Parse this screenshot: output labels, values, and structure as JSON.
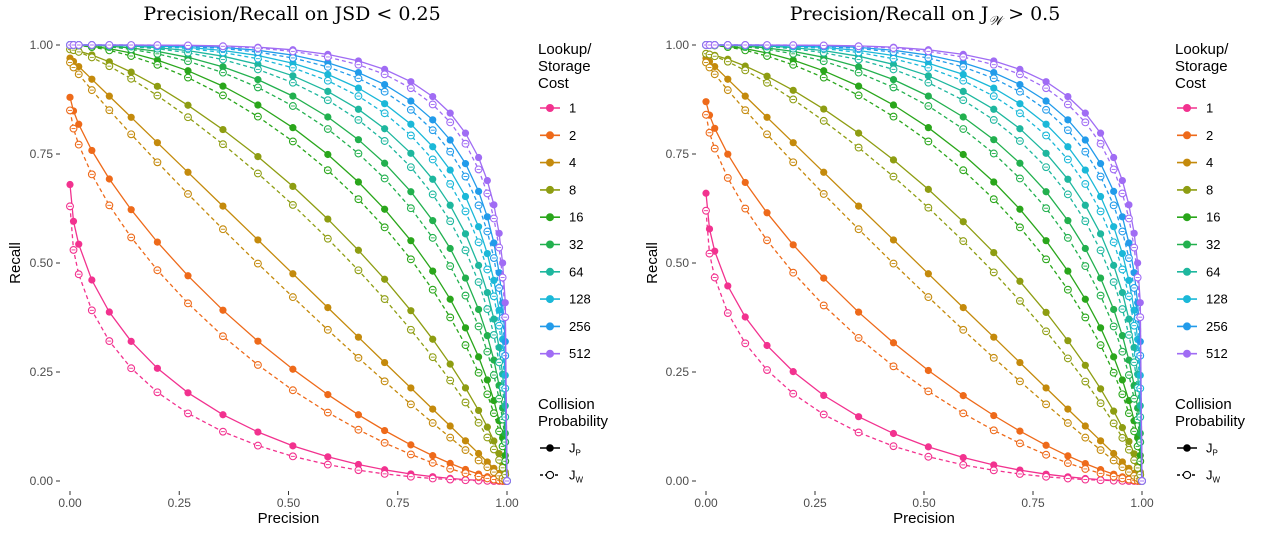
{
  "chart_data": [
    {
      "type": "line",
      "title_prefix": "Precision/Recall on JSD",
      "title_relation": "<",
      "title_threshold": "0.25",
      "xlabel": "Precision",
      "ylabel": "Recall",
      "xlim": [
        0,
        1
      ],
      "ylim": [
        0,
        1
      ],
      "xticks": [
        "0.00",
        "0.25",
        "0.50",
        "0.75",
        "1.00"
      ],
      "yticks": [
        "0.00",
        "0.25",
        "0.50",
        "0.75",
        "1.00"
      ],
      "grid": false,
      "legend_position": "right",
      "legend_cost_title": [
        "Lookup/",
        "Storage",
        "Cost"
      ],
      "legend_prob_title": [
        "Collision",
        "Probability"
      ],
      "costs": [
        {
          "label": "1",
          "color": "#F2328F",
          "start_p": 0.68,
          "start_w": 0.63,
          "knee": 0.55
        },
        {
          "label": "2",
          "color": "#EE6A1A",
          "start_p": 0.88,
          "start_w": 0.85,
          "knee": 0.75
        },
        {
          "label": "4",
          "color": "#C48A0C",
          "start_p": 0.97,
          "start_w": 0.96,
          "knee": 1.0
        },
        {
          "label": "8",
          "color": "#8E9D12",
          "start_p": 0.99,
          "start_w": 0.99,
          "knee": 1.35
        },
        {
          "label": "16",
          "color": "#2AA61B",
          "start_p": 1.0,
          "start_w": 1.0,
          "knee": 1.75
        },
        {
          "label": "32",
          "color": "#22B04E",
          "start_p": 1.0,
          "start_w": 1.0,
          "knee": 2.15
        },
        {
          "label": "64",
          "color": "#1EB79E",
          "start_p": 1.0,
          "start_w": 1.0,
          "knee": 2.6
        },
        {
          "label": "128",
          "color": "#1BB8D8",
          "start_p": 1.0,
          "start_w": 1.0,
          "knee": 3.1
        },
        {
          "label": "256",
          "color": "#229BEA",
          "start_p": 1.0,
          "start_w": 1.0,
          "knee": 3.7
        },
        {
          "label": "512",
          "color": "#A06CF4",
          "start_p": 1.0,
          "start_w": 1.0,
          "knee": 4.5
        }
      ],
      "prob": [
        {
          "label": "J",
          "sub": "P",
          "style": "solid"
        },
        {
          "label": "J",
          "sub": "W",
          "style": "dashed"
        }
      ]
    },
    {
      "type": "line",
      "title_prefix": "Precision/Recall on J",
      "title_sub": "𝒲",
      "title_relation": ">",
      "title_threshold": "0.5",
      "xlabel": "Precision",
      "ylabel": "Recall",
      "xlim": [
        0,
        1
      ],
      "ylim": [
        0,
        1
      ],
      "xticks": [
        "0.00",
        "0.25",
        "0.50",
        "0.75",
        "1.00"
      ],
      "yticks": [
        "0.00",
        "0.25",
        "0.50",
        "0.75",
        "1.00"
      ],
      "grid": false,
      "legend_position": "right",
      "legend_cost_title": [
        "Lookup/",
        "Storage",
        "Cost"
      ],
      "legend_prob_title": [
        "Collision",
        "Probability"
      ],
      "costs": [
        {
          "label": "1",
          "color": "#F2328F",
          "start_p": 0.66,
          "start_w": 0.62,
          "knee": 0.55
        },
        {
          "label": "2",
          "color": "#EE6A1A",
          "start_p": 0.87,
          "start_w": 0.84,
          "knee": 0.75
        },
        {
          "label": "4",
          "color": "#C48A0C",
          "start_p": 0.97,
          "start_w": 0.96,
          "knee": 1.0
        },
        {
          "label": "8",
          "color": "#8E9D12",
          "start_p": 0.98,
          "start_w": 0.98,
          "knee": 1.35
        },
        {
          "label": "16",
          "color": "#2AA61B",
          "start_p": 1.0,
          "start_w": 1.0,
          "knee": 1.75
        },
        {
          "label": "32",
          "color": "#22B04E",
          "start_p": 1.0,
          "start_w": 1.0,
          "knee": 2.15
        },
        {
          "label": "64",
          "color": "#1EB79E",
          "start_p": 1.0,
          "start_w": 1.0,
          "knee": 2.6
        },
        {
          "label": "128",
          "color": "#1BB8D8",
          "start_p": 1.0,
          "start_w": 1.0,
          "knee": 3.1
        },
        {
          "label": "256",
          "color": "#229BEA",
          "start_p": 1.0,
          "start_w": 1.0,
          "knee": 3.7
        },
        {
          "label": "512",
          "color": "#A06CF4",
          "start_p": 1.0,
          "start_w": 1.0,
          "knee": 4.5
        }
      ],
      "prob": [
        {
          "label": "J",
          "sub": "P",
          "style": "solid"
        },
        {
          "label": "J",
          "sub": "W",
          "style": "dashed"
        }
      ]
    }
  ]
}
